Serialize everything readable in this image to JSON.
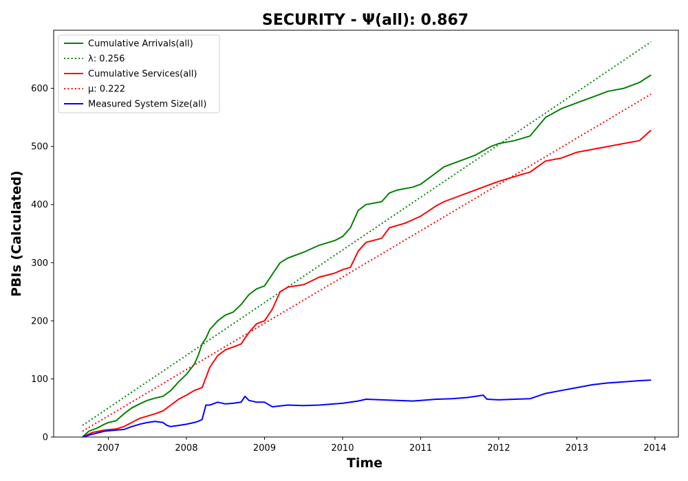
{
  "chart_data": {
    "type": "line",
    "title": "SECURITY -  Ψ(all): 0.867",
    "xlabel": "Time",
    "ylabel": "PBIs (Calculated)",
    "xlim": [
      2006.3,
      2014.3
    ],
    "ylim": [
      0,
      700
    ],
    "x_ticks": [
      2007,
      2008,
      2009,
      2010,
      2011,
      2012,
      2013,
      2014
    ],
    "x_tick_labels": [
      "2007",
      "2008",
      "2009",
      "2010",
      "2011",
      "2012",
      "2013",
      "2014"
    ],
    "y_ticks": [
      0,
      100,
      200,
      300,
      400,
      500,
      600
    ],
    "y_tick_labels": [
      "0",
      "100",
      "200",
      "300",
      "400",
      "500",
      "600"
    ],
    "grid": false,
    "legend_position": "upper-left",
    "series": [
      {
        "name": "Cumulative Arrivals(all)",
        "color": "#008000",
        "style": "solid",
        "x": [
          2006.67,
          2006.75,
          2006.85,
          2006.95,
          2007.0,
          2007.1,
          2007.2,
          2007.3,
          2007.4,
          2007.5,
          2007.6,
          2007.7,
          2007.8,
          2007.9,
          2008.0,
          2008.1,
          2008.15,
          2008.2,
          2008.25,
          2008.3,
          2008.4,
          2008.5,
          2008.6,
          2008.7,
          2008.8,
          2008.9,
          2009.0,
          2009.1,
          2009.2,
          2009.3,
          2009.5,
          2009.7,
          2009.9,
          2010.0,
          2010.1,
          2010.2,
          2010.3,
          2010.5,
          2010.6,
          2010.7,
          2010.9,
          2011.0,
          2011.1,
          2011.2,
          2011.3,
          2011.5,
          2011.7,
          2011.9,
          2012.0,
          2012.2,
          2012.4,
          2012.6,
          2012.8,
          2013.0,
          2013.2,
          2013.4,
          2013.6,
          2013.8,
          2013.95
        ],
        "y": [
          0,
          10,
          15,
          22,
          25,
          28,
          40,
          50,
          57,
          63,
          67,
          70,
          80,
          95,
          108,
          125,
          140,
          160,
          170,
          185,
          200,
          210,
          215,
          228,
          245,
          255,
          260,
          280,
          300,
          308,
          318,
          330,
          338,
          345,
          360,
          390,
          400,
          405,
          420,
          425,
          430,
          435,
          445,
          455,
          465,
          475,
          485,
          500,
          505,
          510,
          518,
          550,
          565,
          575,
          585,
          595,
          600,
          610,
          623
        ]
      },
      {
        "name": "λ: 0.256",
        "color": "#008000",
        "style": "dotted",
        "x": [
          2006.67,
          2013.95
        ],
        "y": [
          20,
          680
        ]
      },
      {
        "name": "Cumulative Services(all)",
        "color": "#ff0000",
        "style": "solid",
        "x": [
          2006.67,
          2006.8,
          2006.95,
          2007.1,
          2007.2,
          2007.3,
          2007.4,
          2007.5,
          2007.6,
          2007.7,
          2007.8,
          2007.9,
          2008.0,
          2008.1,
          2008.2,
          2008.3,
          2008.4,
          2008.5,
          2008.6,
          2008.7,
          2008.8,
          2008.9,
          2009.0,
          2009.1,
          2009.2,
          2009.3,
          2009.5,
          2009.7,
          2009.9,
          2010.0,
          2010.1,
          2010.2,
          2010.3,
          2010.5,
          2010.6,
          2010.8,
          2011.0,
          2011.2,
          2011.3,
          2011.5,
          2011.7,
          2011.9,
          2012.0,
          2012.2,
          2012.4,
          2012.6,
          2012.8,
          2013.0,
          2013.2,
          2013.4,
          2013.6,
          2013.8,
          2013.95
        ],
        "y": [
          0,
          8,
          12,
          14,
          18,
          25,
          32,
          36,
          40,
          45,
          55,
          65,
          72,
          80,
          85,
          120,
          140,
          150,
          155,
          160,
          180,
          195,
          200,
          220,
          250,
          258,
          262,
          275,
          282,
          288,
          292,
          320,
          335,
          342,
          360,
          368,
          380,
          398,
          405,
          415,
          425,
          435,
          440,
          448,
          456,
          475,
          480,
          490,
          495,
          500,
          505,
          510,
          528
        ]
      },
      {
        "name": "μ: 0.222",
        "color": "#ff0000",
        "style": "dotted",
        "x": [
          2006.67,
          2013.95
        ],
        "y": [
          10,
          590
        ]
      },
      {
        "name": "Measured System Size(all)",
        "color": "#0000ff",
        "style": "solid",
        "x": [
          2006.67,
          2006.8,
          2006.95,
          2007.1,
          2007.2,
          2007.3,
          2007.4,
          2007.5,
          2007.6,
          2007.7,
          2007.75,
          2007.8,
          2007.9,
          2008.0,
          2008.1,
          2008.15,
          2008.2,
          2008.25,
          2008.3,
          2008.4,
          2008.5,
          2008.6,
          2008.7,
          2008.75,
          2008.8,
          2008.9,
          2009.0,
          2009.1,
          2009.3,
          2009.5,
          2009.7,
          2009.9,
          2010.0,
          2010.2,
          2010.3,
          2010.5,
          2010.7,
          2010.9,
          2011.0,
          2011.2,
          2011.4,
          2011.6,
          2011.8,
          2011.85,
          2012.0,
          2012.2,
          2012.4,
          2012.6,
          2012.8,
          2013.0,
          2013.2,
          2013.4,
          2013.6,
          2013.8,
          2013.95
        ],
        "y": [
          0,
          5,
          10,
          12,
          13,
          18,
          22,
          25,
          27,
          25,
          20,
          18,
          20,
          22,
          25,
          27,
          30,
          55,
          55,
          60,
          57,
          58,
          60,
          70,
          63,
          60,
          60,
          52,
          55,
          54,
          55,
          57,
          58,
          62,
          65,
          64,
          63,
          62,
          63,
          65,
          66,
          68,
          72,
          65,
          64,
          65,
          66,
          75,
          80,
          85,
          90,
          93,
          95,
          97,
          98
        ]
      }
    ]
  }
}
